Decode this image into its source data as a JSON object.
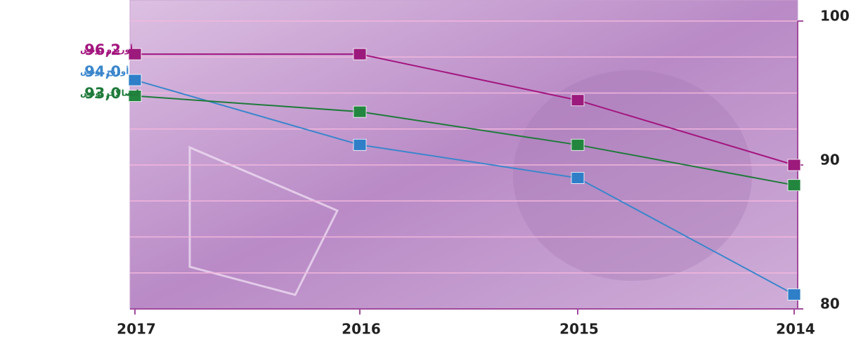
{
  "chart_data": {
    "type": "line",
    "categories": [
      "2017",
      "2016",
      "2015",
      "2014"
    ],
    "series": [
      {
        "name": "أوريدو تونس",
        "color": "#a3167f",
        "marker_color": "#9b1a7c",
        "legend_value": "96,2",
        "values": [
          97.7,
          97.7,
          94.5,
          90.0
        ]
      },
      {
        "name": "أورنج تونس",
        "color": "#3b86cc",
        "marker_color": "#2f7fc8",
        "legend_value": "94,0",
        "values": [
          95.9,
          91.4,
          89.1,
          81.0
        ]
      },
      {
        "name": "اتصالات تونس",
        "color": "#1f7a3a",
        "marker_color": "#23863f",
        "legend_value": "93,0",
        "values": [
          94.8,
          93.7,
          91.4,
          88.6
        ]
      }
    ],
    "ylim": [
      80,
      100
    ],
    "yticks": [
      80,
      90,
      100
    ],
    "grid_lines": [
      82.5,
      85,
      87.5,
      90,
      92.5,
      95,
      97.5,
      100
    ],
    "axis_color": "#a04a9c",
    "grid_color": "#f2b6dc",
    "background": "#c9a1d2"
  }
}
